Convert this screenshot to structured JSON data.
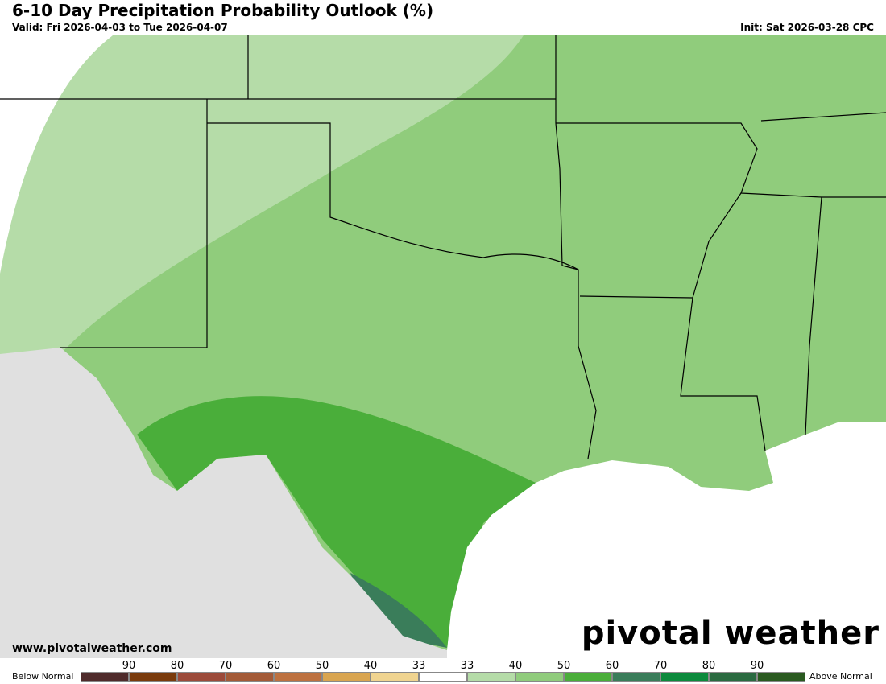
{
  "header": {
    "title": "6-10 Day Precipitation Probability Outlook (%)",
    "valid": "Valid: Fri 2026-04-03 to Tue 2026-04-07",
    "init": "Init: Sat 2026-03-28 CPC"
  },
  "footer": {
    "website": "www.pivotalweather.com",
    "brand": "pivotal weather"
  },
  "legend": {
    "below_label": "Below Normal",
    "above_label": "Above Normal",
    "ticks": [
      "90",
      "80",
      "70",
      "60",
      "50",
      "40",
      "33",
      "33",
      "40",
      "50",
      "60",
      "70",
      "80",
      "90"
    ],
    "colors": [
      "#4f2b2b",
      "#7a3b0c",
      "#9c4a3a",
      "#a35a37",
      "#bd7140",
      "#d9a550",
      "#f0d490",
      "#ffffff",
      "#b5dca8",
      "#90cc7c",
      "#4aae3a",
      "#3a7d5a",
      "#0c8a3c",
      "#2a6a40",
      "#2a5a20"
    ]
  }
}
